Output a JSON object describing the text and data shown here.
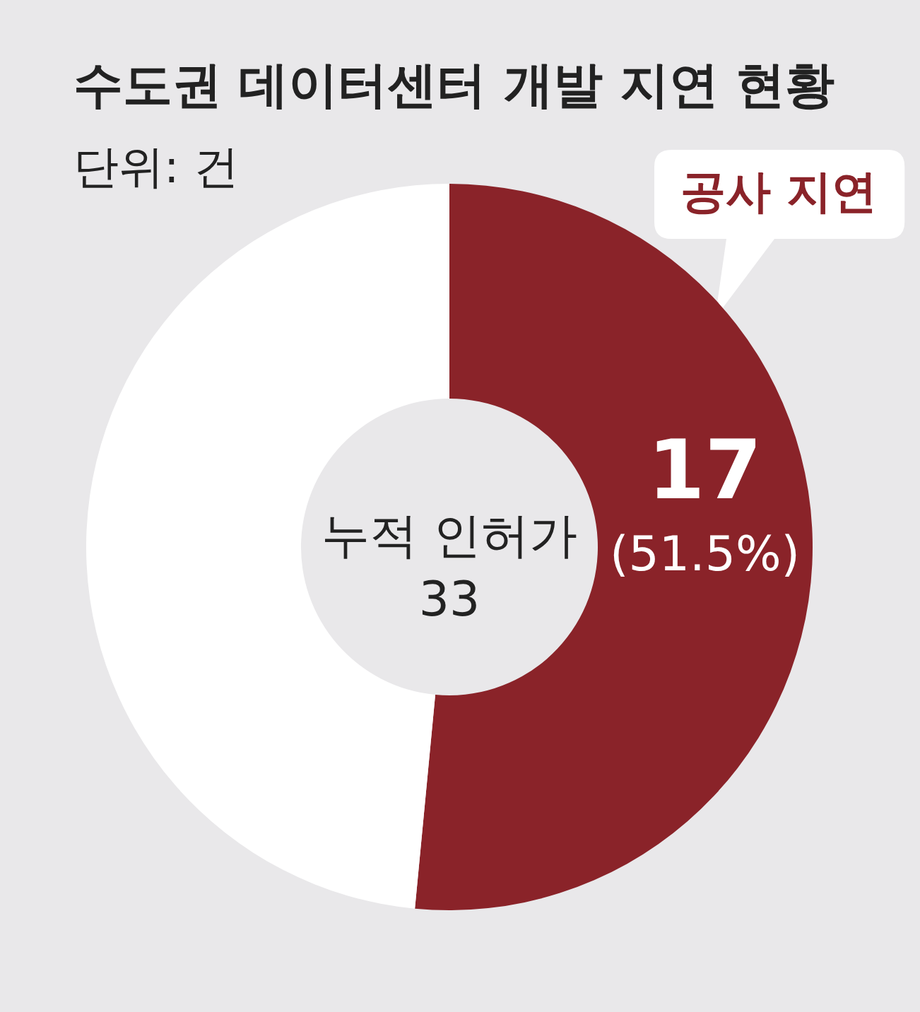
{
  "chart_data": {
    "type": "donut",
    "title": "수도권 데이터센터 개발 지연 현황",
    "subtitle": "단위: 건",
    "categories": [
      "공사 지연",
      null
    ],
    "values": [
      17,
      16
    ],
    "colors": [
      "#8a2329",
      "#ffffff"
    ],
    "value_labels": [
      "17 (51.5%)",
      null
    ],
    "annotations": [
      "누적 인허가 33"
    ]
  }
}
